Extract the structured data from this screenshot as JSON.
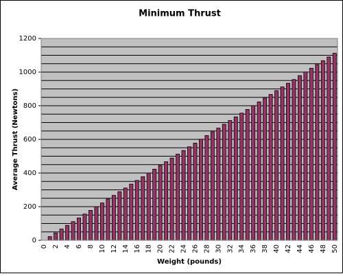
{
  "chart_data": {
    "type": "bar",
    "title": "Minimum Thrust",
    "x_label": "Weight (pounds)",
    "y_label": "Average Thrust (Newtons)",
    "categories": [
      "0",
      null,
      "2",
      null,
      "4",
      null,
      "6",
      null,
      "8",
      null,
      "10",
      null,
      "12",
      null,
      "14",
      null,
      "16",
      null,
      "18",
      null,
      "20",
      null,
      "22",
      null,
      "24",
      null,
      "26",
      null,
      "28",
      null,
      "30",
      null,
      "32",
      null,
      "34",
      null,
      "36",
      null,
      "38",
      null,
      "40",
      null,
      "42",
      null,
      "44",
      null,
      "46",
      null,
      "48",
      null,
      "50"
    ],
    "values": [
      0,
      22,
      44,
      67,
      89,
      111,
      133,
      156,
      178,
      200,
      222,
      245,
      267,
      289,
      311,
      334,
      356,
      378,
      400,
      423,
      445,
      467,
      489,
      512,
      534,
      556,
      578,
      601,
      623,
      645,
      667,
      690,
      712,
      734,
      756,
      778,
      801,
      823,
      845,
      867,
      890,
      912,
      934,
      956,
      979,
      1001,
      1023,
      1045,
      1068,
      1090,
      1112
    ],
    "color": "#993366",
    "plot_background": "#c0c0c0",
    "ylim": [
      0,
      1200
    ],
    "yticks": [
      0,
      200,
      400,
      600,
      800,
      1000,
      1200
    ],
    "ygrid": [
      50,
      100,
      150,
      200,
      250,
      300,
      350,
      400,
      450,
      500,
      550,
      600,
      650,
      700,
      750,
      800,
      850,
      900,
      950,
      1000,
      1050,
      1100,
      1150,
      1200
    ],
    "grid": true
  }
}
